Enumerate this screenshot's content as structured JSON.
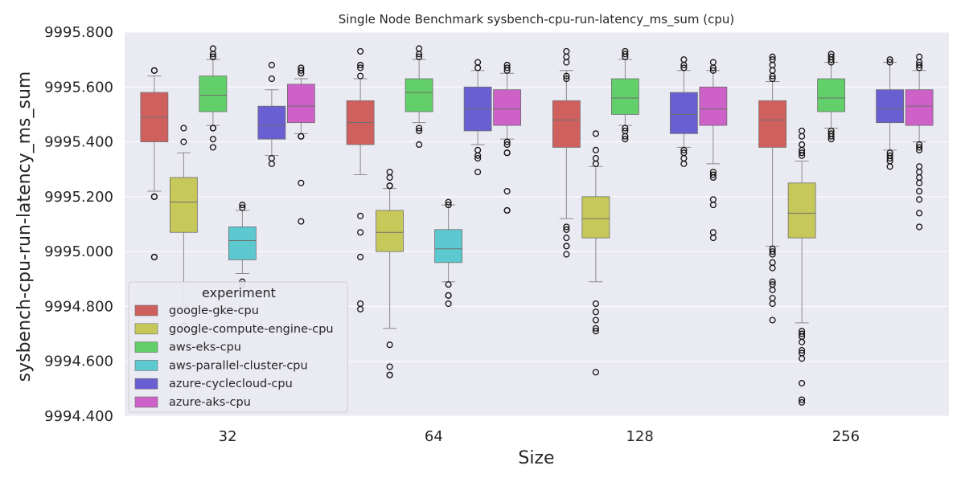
{
  "chart_data": {
    "type": "box",
    "title": "Single Node Benchmark sysbench-cpu-run-latency_ms_sum (cpu)",
    "xlabel": "Size",
    "ylabel": "sysbench-cpu-run-latency_ms_sum",
    "ylim": [
      9994.4,
      9995.8
    ],
    "yticks": [
      "9994.400",
      "9994.600",
      "9994.800",
      "9995.000",
      "9995.200",
      "9995.400",
      "9995.600",
      "9995.800"
    ],
    "categories": [
      "32",
      "64",
      "128",
      "256"
    ],
    "grid": true,
    "legend": {
      "title": "experiment",
      "position": "lower-left"
    },
    "series": [
      {
        "name": "google-gke-cpu",
        "color": "#d0605e",
        "boxes": [
          {
            "whislo": 9995.22,
            "q1": 9995.4,
            "med": 9995.49,
            "q3": 9995.58,
            "whishi": 9995.64,
            "fliers": [
              9995.66,
              9995.66,
              9995.2,
              9995.2,
              9994.98,
              9994.98
            ]
          },
          {
            "whislo": 9995.28,
            "q1": 9995.39,
            "med": 9995.47,
            "q3": 9995.55,
            "whishi": 9995.63,
            "fliers": [
              9995.73,
              9995.68,
              9995.67,
              9995.64,
              9995.13,
              9995.07,
              9994.98,
              9994.81,
              9994.79
            ]
          },
          {
            "whislo": 9995.12,
            "q1": 9995.38,
            "med": 9995.48,
            "q3": 9995.55,
            "whishi": 9995.66,
            "fliers": [
              9995.73,
              9995.71,
              9995.69,
              9995.64,
              9995.63,
              9995.09,
              9995.08,
              9995.05,
              9995.02,
              9995.02,
              9994.99
            ]
          },
          {
            "whislo": 9995.02,
            "q1": 9995.38,
            "med": 9995.48,
            "q3": 9995.55,
            "whishi": 9995.62,
            "fliers": [
              9995.71,
              9995.7,
              9995.68,
              9995.66,
              9995.64,
              9995.63,
              9995.01,
              9995.0,
              9994.99,
              9994.96,
              9994.94,
              9994.89,
              9994.88,
              9994.86,
              9994.83,
              9994.81,
              9994.75
            ]
          }
        ]
      },
      {
        "name": "google-compute-engine-cpu",
        "color": "#c6c95a",
        "boxes": [
          {
            "whislo": 9994.8,
            "q1": 9995.07,
            "med": 9995.18,
            "q3": 9995.27,
            "whishi": 9995.36,
            "fliers": [
              9995.45,
              9995.4,
              9994.73
            ]
          },
          {
            "whislo": 9994.72,
            "q1": 9995.0,
            "med": 9995.07,
            "q3": 9995.15,
            "whishi": 9995.23,
            "fliers": [
              9995.29,
              9995.27,
              9995.24,
              9995.24,
              9994.66,
              9994.58,
              9994.55,
              9994.55
            ]
          },
          {
            "whislo": 9994.89,
            "q1": 9995.05,
            "med": 9995.12,
            "q3": 9995.2,
            "whishi": 9995.31,
            "fliers": [
              9995.43,
              9995.37,
              9995.34,
              9995.32,
              9994.81,
              9994.78,
              9994.75,
              9994.72,
              9994.71,
              9994.56
            ]
          },
          {
            "whislo": 9994.74,
            "q1": 9995.05,
            "med": 9995.14,
            "q3": 9995.25,
            "whishi": 9995.33,
            "fliers": [
              9995.44,
              9995.42,
              9995.39,
              9995.37,
              9995.36,
              9995.35,
              9994.71,
              9994.7,
              9994.69,
              9994.67,
              9994.64,
              9994.63,
              9994.61,
              9994.52,
              9994.46,
              9994.45
            ]
          }
        ]
      },
      {
        "name": "aws-eks-cpu",
        "color": "#63cf6a",
        "boxes": [
          {
            "whislo": 9995.46,
            "q1": 9995.51,
            "med": 9995.57,
            "q3": 9995.64,
            "whishi": 9995.7,
            "fliers": [
              9995.74,
              9995.72,
              9995.71,
              9995.71,
              9995.45,
              9995.45,
              9995.41,
              9995.38
            ]
          },
          {
            "whislo": 9995.47,
            "q1": 9995.51,
            "med": 9995.58,
            "q3": 9995.63,
            "whishi": 9995.7,
            "fliers": [
              9995.74,
              9995.72,
              9995.71,
              9995.45,
              9995.44,
              9995.39
            ]
          },
          {
            "whislo": 9995.46,
            "q1": 9995.5,
            "med": 9995.56,
            "q3": 9995.63,
            "whishi": 9995.7,
            "fliers": [
              9995.73,
              9995.72,
              9995.71,
              9995.45,
              9995.44,
              9995.42,
              9995.41
            ]
          },
          {
            "whislo": 9995.45,
            "q1": 9995.51,
            "med": 9995.56,
            "q3": 9995.63,
            "whishi": 9995.69,
            "fliers": [
              9995.72,
              9995.71,
              9995.7,
              9995.69,
              9995.44,
              9995.43,
              9995.42,
              9995.41
            ]
          }
        ]
      },
      {
        "name": "aws-parallel-cluster-cpu",
        "color": "#5cc8cf",
        "boxes": [
          {
            "whislo": 9994.92,
            "q1": 9994.97,
            "med": 9995.04,
            "q3": 9995.09,
            "whishi": 9995.15,
            "fliers": [
              9995.17,
              9995.16,
              9994.89,
              9994.88
            ]
          },
          {
            "whislo": 9994.89,
            "q1": 9994.96,
            "med": 9995.01,
            "q3": 9995.08,
            "whishi": 9995.17,
            "fliers": [
              9995.18,
              9995.17,
              9994.88,
              9994.84,
              9994.84,
              9994.81
            ]
          }
        ]
      },
      {
        "name": "azure-cyclecloud-cpu",
        "color": "#6a5fd2",
        "boxes": [
          {
            "whislo": 9995.35,
            "q1": 9995.41,
            "med": 9995.46,
            "q3": 9995.53,
            "whishi": 9995.59,
            "fliers": [
              9995.68,
              9995.63,
              9995.34,
              9995.32
            ]
          },
          {
            "whislo": 9995.39,
            "q1": 9995.44,
            "med": 9995.52,
            "q3": 9995.6,
            "whishi": 9995.66,
            "fliers": [
              9995.69,
              9995.67,
              9995.37,
              9995.35,
              9995.34,
              9995.29
            ]
          },
          {
            "whislo": 9995.38,
            "q1": 9995.43,
            "med": 9995.5,
            "q3": 9995.58,
            "whishi": 9995.66,
            "fliers": [
              9995.7,
              9995.68,
              9995.67,
              9995.37,
              9995.36,
              9995.34,
              9995.32
            ]
          },
          {
            "whislo": 9995.37,
            "q1": 9995.47,
            "med": 9995.52,
            "q3": 9995.59,
            "whishi": 9995.69,
            "fliers": [
              9995.7,
              9995.69,
              9995.36,
              9995.35,
              9995.34,
              9995.33,
              9995.31
            ]
          }
        ]
      },
      {
        "name": "azure-aks-cpu",
        "color": "#cd61c8",
        "boxes": [
          {
            "whislo": 9995.43,
            "q1": 9995.47,
            "med": 9995.53,
            "q3": 9995.61,
            "whishi": 9995.63,
            "fliers": [
              9995.67,
              9995.66,
              9995.65,
              9995.42,
              9995.42,
              9995.25,
              9995.11
            ]
          },
          {
            "whislo": 9995.41,
            "q1": 9995.46,
            "med": 9995.52,
            "q3": 9995.59,
            "whishi": 9995.65,
            "fliers": [
              9995.68,
              9995.67,
              9995.66,
              9995.4,
              9995.39,
              9995.36,
              9995.36,
              9995.22,
              9995.15,
              9995.15
            ]
          },
          {
            "whislo": 9995.32,
            "q1": 9995.46,
            "med": 9995.52,
            "q3": 9995.6,
            "whishi": 9995.66,
            "fliers": [
              9995.69,
              9995.67,
              9995.66,
              9995.29,
              9995.28,
              9995.27,
              9995.19,
              9995.17,
              9995.07,
              9995.05
            ]
          },
          {
            "whislo": 9995.4,
            "q1": 9995.46,
            "med": 9995.53,
            "q3": 9995.59,
            "whishi": 9995.66,
            "fliers": [
              9995.71,
              9995.69,
              9995.68,
              9995.67,
              9995.39,
              9995.38,
              9995.37,
              9995.31,
              9995.29,
              9995.27,
              9995.25,
              9995.22,
              9995.19,
              9995.14,
              9995.09
            ]
          }
        ]
      }
    ]
  }
}
